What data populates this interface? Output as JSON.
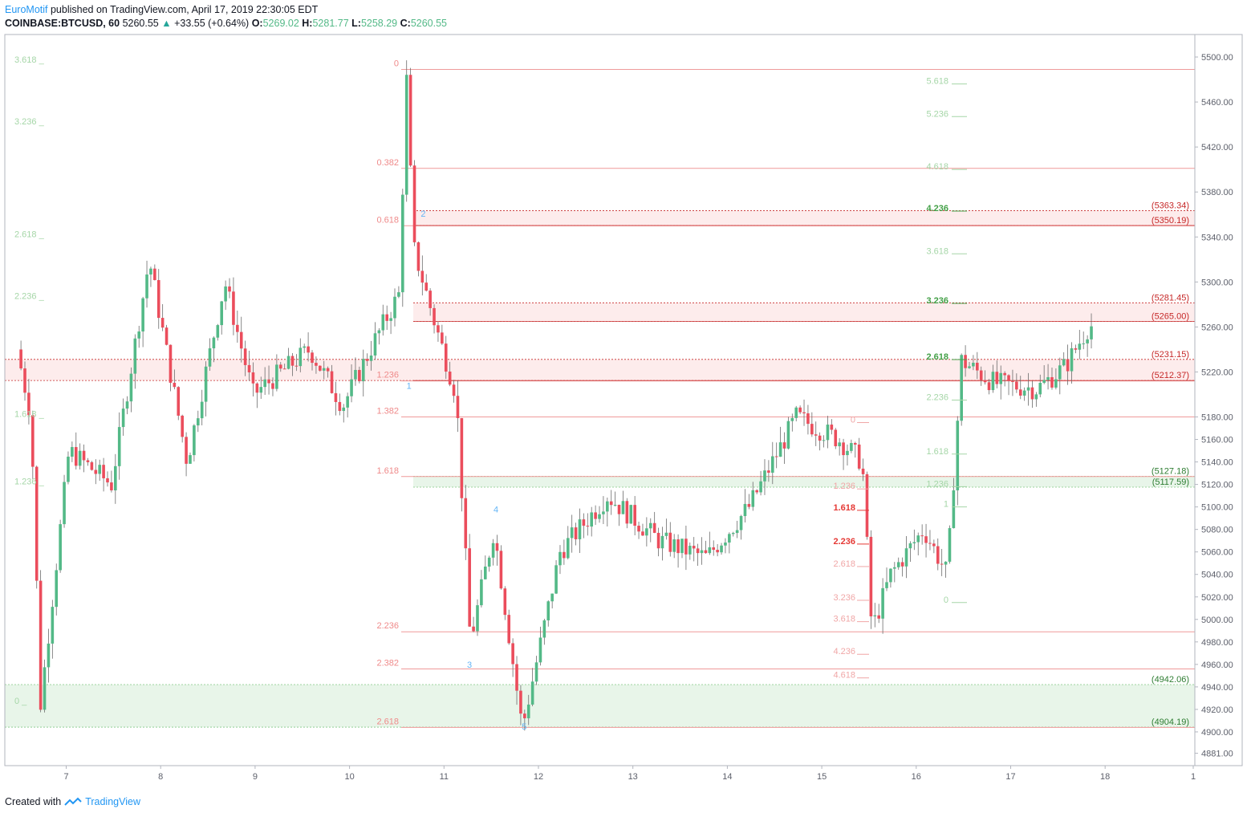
{
  "header": {
    "author": "EuroMotif",
    "published": "published on TradingView.com, April 17, 2019 22:30:05 EDT",
    "symbol": "COINBASE:BTCUSD, 60",
    "last": "5260.55",
    "change": "+33.55 (+0.64%)",
    "o_label": "O:",
    "o": "5269.02",
    "h_label": "H:",
    "h": "5281.77",
    "l_label": "L:",
    "l": "5258.29",
    "c_label": "C:",
    "c": "5260.55"
  },
  "footer": {
    "created": "Created with",
    "brand": "TradingView"
  },
  "colors": {
    "red_line": "#ef9a9a",
    "dark_red": "#c62828",
    "green_zone": "#e8f5e9",
    "red_zone": "#fdecec",
    "candle_up": "#53b987",
    "candle_down": "#eb4d5c",
    "axis_text": "#5d606b",
    "fib_green": "#a5d6a7",
    "fib_red_text": "#f0a6a6",
    "wave_blue": "#64b5f6",
    "accent": "#2196f3"
  },
  "chart_data": {
    "type": "candlestick",
    "y_scale": "linear",
    "grid": false,
    "ylim": [
      4870,
      5520
    ],
    "y_ticks": [
      "5500.00",
      "5460.00",
      "5420.00",
      "5380.00",
      "5340.00",
      "5300.00",
      "5260.00",
      "5220.00",
      "5180.00",
      "5160.00",
      "5140.00",
      "5120.00",
      "5100.00",
      "5080.00",
      "5060.00",
      "5040.00",
      "5020.00",
      "5000.00",
      "4980.00",
      "4960.00",
      "4940.00",
      "4920.00",
      "4900.00",
      "4881.00"
    ],
    "x_ticks": [
      "7",
      "8",
      "9",
      "10",
      "11",
      "12",
      "13",
      "14",
      "15",
      "16",
      "17",
      "18",
      "1"
    ],
    "x_day_start": 6.35,
    "x_day_end": 18.95,
    "red_fib_levels": [
      {
        "label": "0",
        "price": 5489
      },
      {
        "label": "0.382",
        "price": 5401
      },
      {
        "label": "0.618",
        "price": 5350
      },
      {
        "label": "1.236",
        "price": 5212
      },
      {
        "label": "1.382",
        "price": 5180
      },
      {
        "label": "1.618",
        "price": 5127
      },
      {
        "label": "2.236",
        "price": 4989
      },
      {
        "label": "2.382",
        "price": 4956
      },
      {
        "label": "2.618",
        "price": 4904
      }
    ],
    "left_green_fib": [
      {
        "label": "3.618",
        "price": 5495
      },
      {
        "label": "3.236",
        "price": 5440
      },
      {
        "label": "2.618",
        "price": 5340
      },
      {
        "label": "2.236",
        "price": 5285
      },
      {
        "label": "1.618",
        "price": 5180
      },
      {
        "label": "1.236",
        "price": 5120
      },
      {
        "label": "0",
        "price": 4925
      }
    ],
    "right_green_fib": [
      {
        "label": "5.618",
        "price": 5476
      },
      {
        "label": "5.236",
        "price": 5447
      },
      {
        "label": "4.618",
        "price": 5400
      },
      {
        "label": "4.236",
        "price": 5363
      },
      {
        "label": "3.618",
        "price": 5325
      },
      {
        "label": "3.236",
        "price": 5281
      },
      {
        "label": "2.618",
        "price": 5231
      },
      {
        "label": "2.236",
        "price": 5195
      },
      {
        "label": "1.618",
        "price": 5147
      },
      {
        "label": "1.236",
        "price": 5118
      },
      {
        "label": "1",
        "price": 5100
      },
      {
        "label": "0",
        "price": 5015
      }
    ],
    "mid_fib": [
      {
        "label": "0",
        "price": 5175
      },
      {
        "label": "1.236",
        "price": 5116
      },
      {
        "label": "1.618",
        "price": 5097
      },
      {
        "label": "2.236",
        "price": 5067
      },
      {
        "label": "2.618",
        "price": 5047
      },
      {
        "label": "3.236",
        "price": 5017
      },
      {
        "label": "3.618",
        "price": 4998
      },
      {
        "label": "4.236",
        "price": 4969
      },
      {
        "label": "4.618",
        "price": 4948
      }
    ],
    "price_labels": [
      {
        "label": "(5363.34)",
        "price": 5363.34
      },
      {
        "label": "(5350.19)",
        "price": 5350.19
      },
      {
        "label": "(5281.45)",
        "price": 5281.45
      },
      {
        "label": "(5265.00)",
        "price": 5265.0
      },
      {
        "label": "(5231.15)",
        "price": 5231.15
      },
      {
        "label": "(5212.37)",
        "price": 5212.37
      },
      {
        "label": "(5127.18)",
        "price": 5127.18
      },
      {
        "label": "(5117.59)",
        "price": 5117.59
      },
      {
        "label": "(4942.06)",
        "price": 4942.06
      },
      {
        "label": "(4904.19)",
        "price": 4904.19
      }
    ],
    "zones": [
      {
        "from": 5350.19,
        "to": 5363.34,
        "kind": "red"
      },
      {
        "from": 5265.0,
        "to": 5281.45,
        "kind": "red"
      },
      {
        "from": 5212.37,
        "to": 5231.15,
        "kind": "red"
      },
      {
        "from": 5117.59,
        "to": 5127.18,
        "kind": "green"
      },
      {
        "from": 4904.19,
        "to": 4942.06,
        "kind": "green"
      }
    ],
    "waves": [
      {
        "label": "1",
        "day": 10.63,
        "price": 5205
      },
      {
        "label": "2",
        "day": 10.78,
        "price": 5358
      },
      {
        "label": "3",
        "day": 11.27,
        "price": 4957
      },
      {
        "label": "4",
        "day": 11.55,
        "price": 5095
      },
      {
        "label": "5",
        "day": 11.85,
        "price": 4902
      }
    ],
    "anchors": [
      {
        "day": 6.5,
        "price": 5240
      },
      {
        "day": 6.65,
        "price": 5180
      },
      {
        "day": 6.75,
        "price": 4925
      },
      {
        "day": 7.05,
        "price": 5150
      },
      {
        "day": 7.5,
        "price": 5120
      },
      {
        "day": 7.9,
        "price": 5320
      },
      {
        "day": 8.3,
        "price": 5140
      },
      {
        "day": 8.7,
        "price": 5300
      },
      {
        "day": 9.0,
        "price": 5200
      },
      {
        "day": 9.6,
        "price": 5240
      },
      {
        "day": 9.95,
        "price": 5190
      },
      {
        "day": 10.3,
        "price": 5250
      },
      {
        "day": 10.55,
        "price": 5290
      },
      {
        "day": 10.62,
        "price": 5489
      },
      {
        "day": 10.7,
        "price": 5330
      },
      {
        "day": 10.9,
        "price": 5270
      },
      {
        "day": 11.15,
        "price": 5200
      },
      {
        "day": 11.3,
        "price": 4980
      },
      {
        "day": 11.55,
        "price": 5080
      },
      {
        "day": 11.85,
        "price": 4903
      },
      {
        "day": 12.25,
        "price": 5060
      },
      {
        "day": 12.75,
        "price": 5110
      },
      {
        "day": 13.3,
        "price": 5070
      },
      {
        "day": 13.8,
        "price": 5055
      },
      {
        "day": 14.25,
        "price": 5100
      },
      {
        "day": 14.75,
        "price": 5180
      },
      {
        "day": 15.2,
        "price": 5160
      },
      {
        "day": 15.45,
        "price": 5140
      },
      {
        "day": 15.55,
        "price": 4990
      },
      {
        "day": 15.75,
        "price": 5040
      },
      {
        "day": 16.1,
        "price": 5080
      },
      {
        "day": 16.35,
        "price": 5040
      },
      {
        "day": 16.5,
        "price": 5230
      },
      {
        "day": 16.85,
        "price": 5210
      },
      {
        "day": 17.3,
        "price": 5205
      },
      {
        "day": 17.6,
        "price": 5225
      },
      {
        "day": 17.85,
        "price": 5261
      }
    ]
  }
}
